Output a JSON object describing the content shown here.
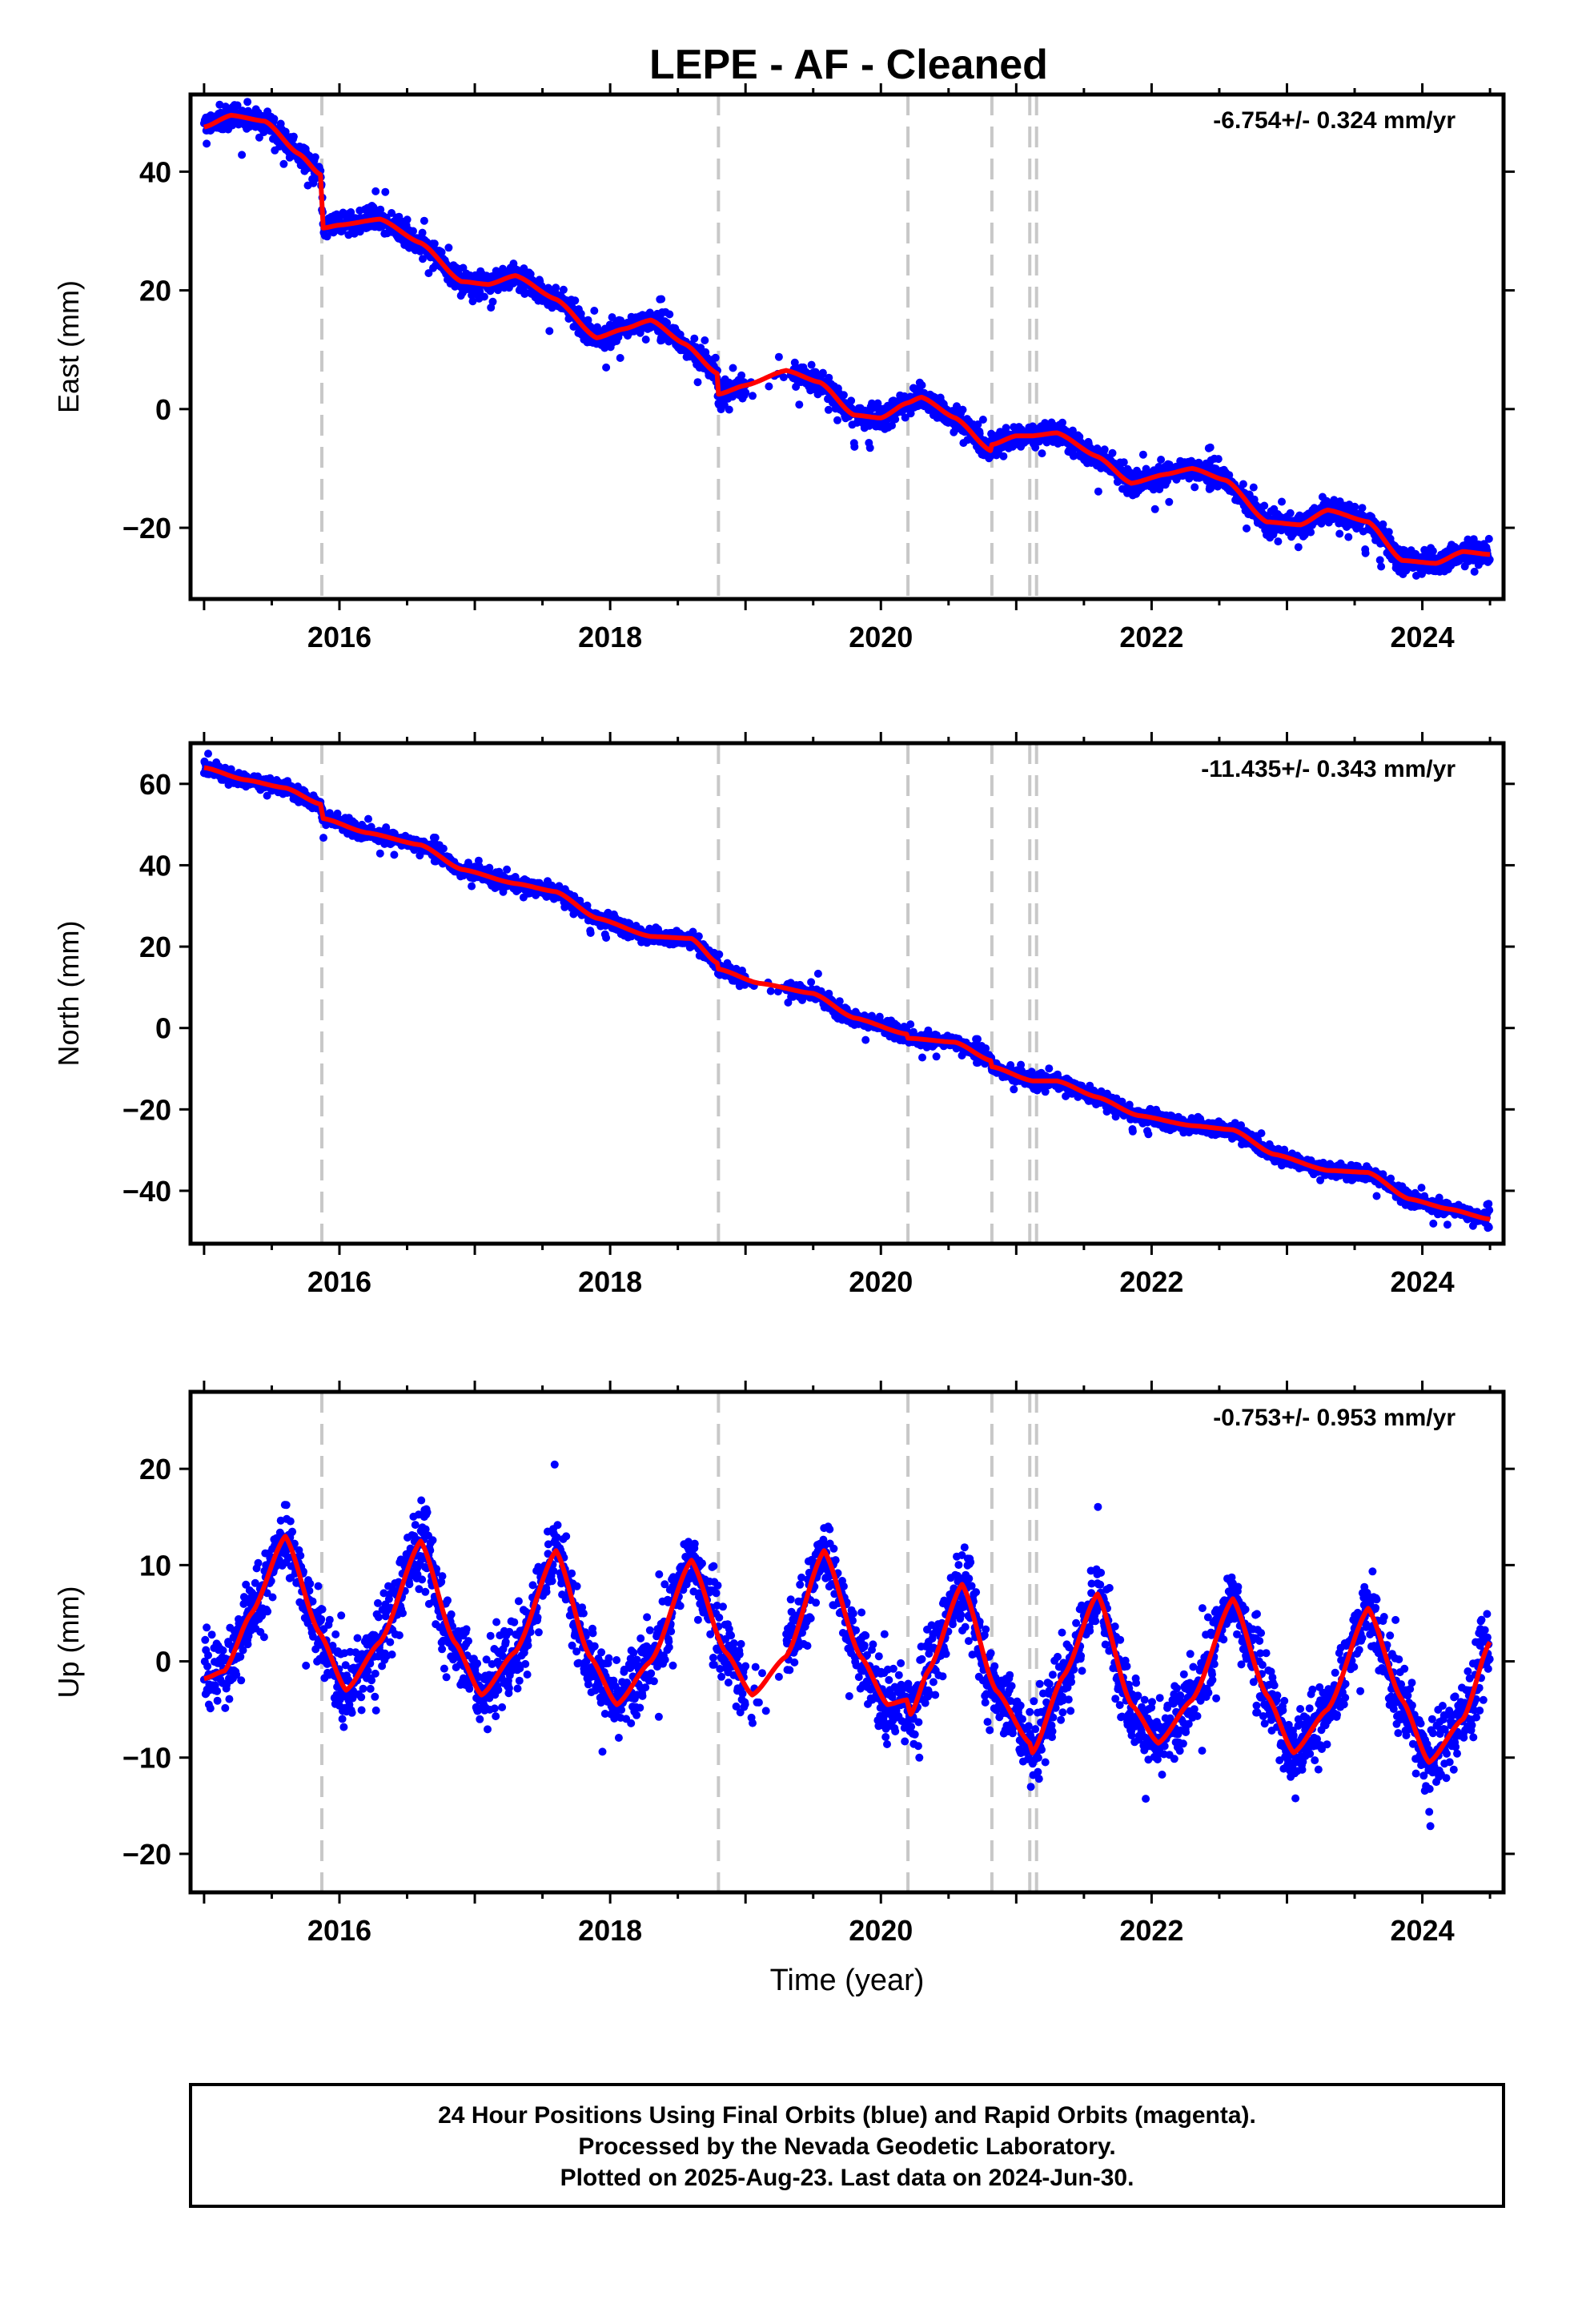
{
  "title": "LEPE  - AF - Cleaned",
  "footer": {
    "line1": "24 Hour Positions Using Final Orbits (blue) and Rapid Orbits (magenta).",
    "line2": "Processed by the Nevada Geodetic Laboratory.",
    "line3": "Plotted on 2025-Aug-23. Last data on 2024-Jun-30."
  },
  "colors": {
    "points": "#0000ff",
    "model": "#ff0000",
    "steps": "#c8c8c8"
  },
  "chart_data": [
    {
      "type": "scatter",
      "ylabel": "East (mm)",
      "xlabel": "",
      "rate_label": "-6.754+/- 0.324 mm/yr",
      "xlim": [
        2014.9,
        2024.6
      ],
      "ylim": [
        -32,
        53
      ],
      "xticks": [
        "2016",
        "2018",
        "2020",
        "2022",
        "2024"
      ],
      "yticks": [
        "−20",
        "0",
        "20",
        "40"
      ],
      "ytick_values": [
        -20,
        0,
        20,
        40
      ],
      "step_lines": [
        2015.87,
        2018.8,
        2020.2,
        2020.82,
        2021.1,
        2021.15
      ],
      "model": {
        "x": [
          2015.0,
          2015.2,
          2015.45,
          2015.7,
          2015.86,
          2015.88,
          2016.0,
          2016.3,
          2016.6,
          2016.9,
          2017.1,
          2017.3,
          2017.6,
          2017.9,
          2018.1,
          2018.3,
          2018.55,
          2018.79,
          2018.8,
          2019.0,
          2019.3,
          2019.55,
          2019.8,
          2020.0,
          2020.19,
          2020.3,
          2020.55,
          2020.81,
          2020.82,
          2021.0,
          2021.12,
          2021.3,
          2021.6,
          2021.85,
          2022.1,
          2022.3,
          2022.55,
          2022.85,
          2023.1,
          2023.3,
          2023.6,
          2023.85,
          2024.1,
          2024.3,
          2024.5
        ],
        "y": [
          47.5,
          49.5,
          48.5,
          43,
          39.5,
          30.5,
          31,
          32,
          28,
          21.5,
          21,
          22.5,
          18.5,
          12,
          13.5,
          15,
          11,
          6,
          2.5,
          4,
          6.5,
          4.5,
          -1,
          -1.5,
          1,
          2,
          -1.5,
          -7,
          -6,
          -4.5,
          -4.5,
          -4,
          -8,
          -12.5,
          -11,
          -10,
          -12,
          -19,
          -19.5,
          -17,
          -19,
          -25.5,
          -26,
          -24,
          -24.5
        ]
      },
      "noise": 1.8,
      "outlier_chance": 0.03,
      "outlier_spread": 5,
      "gap": [
        2019.0,
        2019.35
      ]
    },
    {
      "type": "scatter",
      "ylabel": "North (mm)",
      "xlabel": "",
      "rate_label": "-11.435+/- 0.343 mm/yr",
      "xlim": [
        2014.9,
        2024.6
      ],
      "ylim": [
        -53,
        70
      ],
      "xticks": [
        "2016",
        "2018",
        "2020",
        "2022",
        "2024"
      ],
      "yticks": [
        "−40",
        "−20",
        "0",
        "20",
        "40",
        "60"
      ],
      "ytick_values": [
        -40,
        -20,
        0,
        20,
        40,
        60
      ],
      "step_lines": [
        2015.87,
        2018.8,
        2020.2,
        2020.82,
        2021.1,
        2021.15
      ],
      "model": {
        "x": [
          2015.0,
          2015.3,
          2015.6,
          2015.86,
          2015.88,
          2016.2,
          2016.6,
          2016.9,
          2017.3,
          2017.6,
          2017.9,
          2018.3,
          2018.6,
          2018.79,
          2018.8,
          2019.1,
          2019.5,
          2019.8,
          2020.19,
          2020.2,
          2020.55,
          2020.81,
          2020.82,
          2021.12,
          2021.3,
          2021.6,
          2021.9,
          2022.3,
          2022.6,
          2022.9,
          2023.3,
          2023.6,
          2023.9,
          2024.2,
          2024.5
        ],
        "y": [
          64,
          61,
          59,
          55,
          51.5,
          48,
          45,
          39,
          35.5,
          33.5,
          27,
          22.5,
          22,
          16,
          14.5,
          11,
          8.5,
          2.5,
          -1.5,
          -2.5,
          -3.5,
          -8,
          -9.5,
          -13,
          -13,
          -17,
          -21.5,
          -24,
          -25,
          -31,
          -35,
          -35.5,
          -42,
          -44.5,
          -47
        ]
      },
      "noise": 1.6,
      "outlier_chance": 0.03,
      "outlier_spread": 4,
      "gap": [
        2019.0,
        2019.3
      ]
    },
    {
      "type": "scatter",
      "ylabel": "Up (mm)",
      "xlabel": "Time (year)",
      "rate_label": "-0.753+/- 0.953 mm/yr",
      "xlim": [
        2014.9,
        2024.6
      ],
      "ylim": [
        -24,
        28
      ],
      "xticks": [
        "2016",
        "2018",
        "2020",
        "2022",
        "2024"
      ],
      "yticks": [
        "−20",
        "−10",
        "0",
        "10",
        "20"
      ],
      "ytick_values": [
        -20,
        -10,
        0,
        10,
        20
      ],
      "step_lines": [
        2015.87,
        2018.8,
        2020.2,
        2020.82,
        2021.1,
        2021.15
      ],
      "model": {
        "x": [
          2015.0,
          2015.15,
          2015.35,
          2015.6,
          2015.85,
          2016.05,
          2016.3,
          2016.6,
          2016.85,
          2017.05,
          2017.3,
          2017.6,
          2017.85,
          2018.05,
          2018.3,
          2018.6,
          2018.85,
          2019.05,
          2019.3,
          2019.58,
          2019.85,
          2020.05,
          2020.19,
          2020.22,
          2020.35,
          2020.6,
          2020.85,
          2021.1,
          2021.12,
          2021.35,
          2021.6,
          2021.85,
          2022.05,
          2022.3,
          2022.6,
          2022.85,
          2023.05,
          2023.3,
          2023.6,
          2023.85,
          2024.05,
          2024.3,
          2024.5
        ],
        "y": [
          -1.8,
          -1,
          5,
          13,
          3,
          -3,
          2,
          12.5,
          2,
          -3.5,
          1,
          11.5,
          0.5,
          -4.5,
          0,
          10.5,
          1,
          -3.5,
          0.5,
          11.5,
          0.5,
          -4.5,
          -4,
          -5.5,
          -1,
          8,
          -3,
          -8.5,
          -9.5,
          -1.5,
          7,
          -4.5,
          -8.5,
          -4,
          6.5,
          -3.5,
          -9.5,
          -5,
          5.5,
          -4,
          -10.5,
          -6,
          2
        ]
      },
      "noise": 3.3,
      "outlier_chance": 0.05,
      "outlier_spread": 6,
      "gap": [
        2019.0,
        2019.3
      ]
    }
  ]
}
